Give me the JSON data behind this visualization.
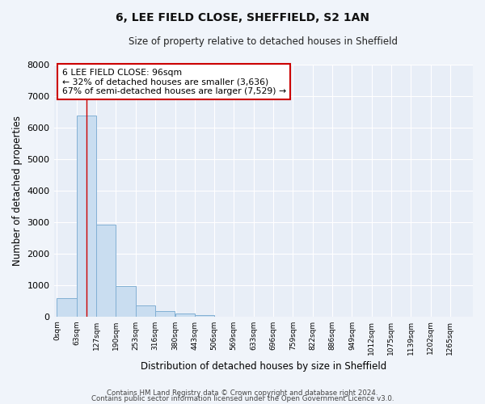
{
  "title": "6, LEE FIELD CLOSE, SHEFFIELD, S2 1AN",
  "subtitle": "Size of property relative to detached houses in Sheffield",
  "xlabel": "Distribution of detached houses by size in Sheffield",
  "ylabel": "Number of detached properties",
  "bar_left_edges": [
    0,
    63,
    127,
    190,
    253,
    316,
    380,
    443,
    506,
    569,
    633,
    696,
    759,
    822,
    886,
    949,
    1012,
    1075,
    1139,
    1202
  ],
  "bar_heights": [
    570,
    6380,
    2920,
    975,
    350,
    160,
    90,
    50,
    0,
    0,
    0,
    0,
    0,
    0,
    0,
    0,
    0,
    0,
    0,
    0
  ],
  "bin_width": 63,
  "xtick_labels": [
    "0sqm",
    "63sqm",
    "127sqm",
    "190sqm",
    "253sqm",
    "316sqm",
    "380sqm",
    "443sqm",
    "506sqm",
    "569sqm",
    "633sqm",
    "696sqm",
    "759sqm",
    "822sqm",
    "886sqm",
    "949sqm",
    "1012sqm",
    "1075sqm",
    "1139sqm",
    "1202sqm",
    "1265sqm"
  ],
  "bar_color": "#c9ddf0",
  "bar_edge_color": "#82b0d4",
  "fig_bg_color": "#f0f4fa",
  "ax_bg_color": "#e8eef7",
  "grid_color": "#ffffff",
  "vline_x": 96,
  "vline_color": "#cc0000",
  "annotation_lines": [
    "6 LEE FIELD CLOSE: 96sqm",
    "← 32% of detached houses are smaller (3,636)",
    "67% of semi-detached houses are larger (7,529) →"
  ],
  "annotation_box_edgecolor": "#cc0000",
  "ylim": [
    0,
    8000
  ],
  "yticks": [
    0,
    1000,
    2000,
    3000,
    4000,
    5000,
    6000,
    7000,
    8000
  ],
  "footer_line1": "Contains HM Land Registry data © Crown copyright and database right 2024.",
  "footer_line2": "Contains public sector information licensed under the Open Government Licence v3.0."
}
